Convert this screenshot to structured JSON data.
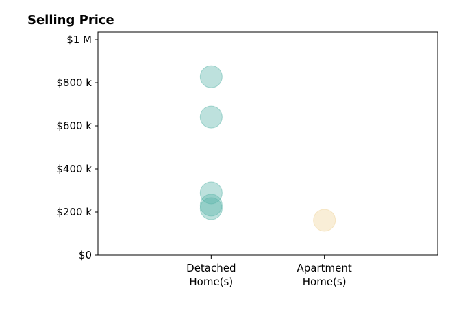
{
  "chart_data": {
    "type": "strip",
    "title": "Selling Price",
    "categories": [
      "Detached\nHome(s)",
      "Apartment\nHome(s)"
    ],
    "xlim": [
      0,
      3
    ],
    "series": [
      {
        "color": "#5bb5aa",
        "values": [
          828000,
          641000,
          289000,
          232000,
          216000
        ]
      },
      {
        "color": "#f0d49a",
        "values": [
          162000
        ]
      }
    ],
    "ylim": [
      0,
      1035000
    ],
    "yticks": [
      {
        "value": 0,
        "label": "$0"
      },
      {
        "value": 200000,
        "label": "$200 k"
      },
      {
        "value": 400000,
        "label": "$400 k"
      },
      {
        "value": 600000,
        "label": "$600 k"
      },
      {
        "value": 800000,
        "label": "$800 k"
      },
      {
        "value": 1000000,
        "label": "$1 M"
      }
    ]
  }
}
